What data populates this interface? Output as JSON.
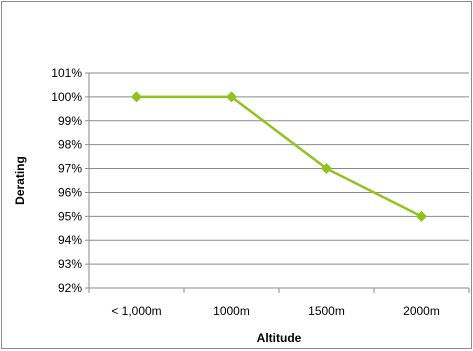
{
  "chart_data": {
    "type": "line",
    "title": "",
    "xlabel": "Altitude",
    "ylabel": "Derating",
    "categories": [
      "< 1,000m",
      "1000m",
      "1500m",
      "2000m"
    ],
    "series": [
      {
        "values": [
          100,
          100,
          97,
          95
        ],
        "color": "#8fc31f"
      }
    ],
    "ylim": [
      92,
      101
    ],
    "y_ticks": [
      92,
      93,
      94,
      95,
      96,
      97,
      98,
      99,
      100,
      101
    ],
    "y_tick_labels": [
      "92%",
      "93%",
      "94%",
      "95%",
      "96%",
      "97%",
      "98%",
      "99%",
      "100%",
      "101%"
    ],
    "grid": true,
    "legend": "none",
    "marker": "diamond"
  }
}
